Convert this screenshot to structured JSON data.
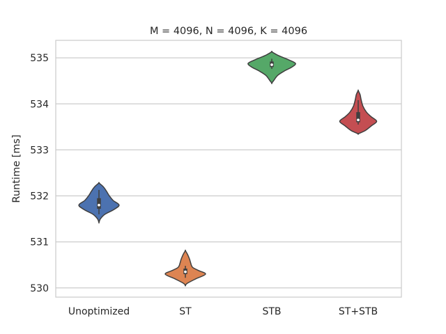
{
  "chart_data": {
    "type": "violin",
    "title": "M = 4096, N = 4096, K = 4096",
    "xlabel": "",
    "ylabel": "Runtime [ms]",
    "ylim": [
      529.8,
      535.38
    ],
    "yticks": [
      530,
      531,
      532,
      533,
      534,
      535
    ],
    "grid": true,
    "categories": [
      "Unoptimized",
      "ST",
      "STB",
      "ST+STB"
    ],
    "colors": [
      "#4c72b0",
      "#dd8452",
      "#55a868",
      "#c44e52"
    ],
    "violins": [
      {
        "name": "Unoptimized",
        "profile": [
          [
            531.42,
            0.0
          ],
          [
            531.5,
            0.06
          ],
          [
            531.6,
            0.25
          ],
          [
            531.7,
            0.62
          ],
          [
            531.8,
            0.85
          ],
          [
            531.9,
            0.6
          ],
          [
            532.0,
            0.44
          ],
          [
            532.1,
            0.32
          ],
          [
            532.2,
            0.18
          ],
          [
            532.28,
            0.0
          ]
        ],
        "q1": 531.72,
        "median": 531.8,
        "q3": 531.95,
        "whisker_low": 531.6,
        "whisker_high": 532.13
      },
      {
        "name": "ST",
        "profile": [
          [
            530.05,
            0.0
          ],
          [
            530.1,
            0.08
          ],
          [
            530.2,
            0.45
          ],
          [
            530.3,
            0.85
          ],
          [
            530.38,
            0.55
          ],
          [
            530.45,
            0.3
          ],
          [
            530.55,
            0.22
          ],
          [
            530.62,
            0.18
          ],
          [
            530.72,
            0.1
          ],
          [
            530.81,
            0.0
          ]
        ],
        "q1": 530.3,
        "median": 530.35,
        "q3": 530.42,
        "whisker_low": 530.22,
        "whisker_high": 530.48
      },
      {
        "name": "STB",
        "profile": [
          [
            534.45,
            0.0
          ],
          [
            534.52,
            0.1
          ],
          [
            534.62,
            0.25
          ],
          [
            534.72,
            0.55
          ],
          [
            534.8,
            0.85
          ],
          [
            534.88,
            1.0
          ],
          [
            534.96,
            0.7
          ],
          [
            535.05,
            0.28
          ],
          [
            535.13,
            0.0
          ]
        ],
        "q1": 534.8,
        "median": 534.85,
        "q3": 534.92,
        "whisker_low": 534.76,
        "whisker_high": 534.98
      },
      {
        "name": "ST+STB",
        "profile": [
          [
            533.35,
            0.0
          ],
          [
            533.42,
            0.3
          ],
          [
            533.52,
            0.55
          ],
          [
            533.62,
            0.78
          ],
          [
            533.72,
            0.55
          ],
          [
            533.82,
            0.35
          ],
          [
            533.95,
            0.2
          ],
          [
            534.1,
            0.12
          ],
          [
            534.2,
            0.08
          ],
          [
            534.29,
            0.0
          ]
        ],
        "q1": 533.6,
        "median": 533.65,
        "q3": 533.82,
        "whisker_low": 533.55,
        "whisker_high": 534.08
      }
    ]
  }
}
